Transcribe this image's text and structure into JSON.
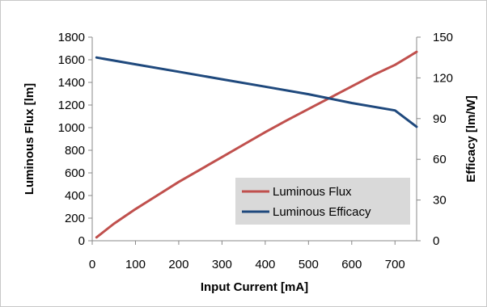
{
  "chart_data": {
    "type": "line",
    "xlabel": "Input Current [mA]",
    "ylabel_left": "Luminous Flux [lm]",
    "ylabel_right": "Efficacy [lm/W]",
    "xlim": [
      0,
      750
    ],
    "ylim_left": [
      0,
      1800
    ],
    "ylim_right": [
      0,
      150
    ],
    "x_ticks": [
      0,
      100,
      200,
      300,
      400,
      500,
      600,
      700
    ],
    "y_left_ticks": [
      0,
      200,
      400,
      600,
      800,
      1000,
      1200,
      1400,
      1600,
      1800
    ],
    "y_right_ticks": [
      0,
      30,
      60,
      90,
      120,
      150
    ],
    "grid": false,
    "legend_position": "bottom-right",
    "series": [
      {
        "name": "Luminous Flux",
        "axis": "left",
        "color": "#c0504d",
        "x": [
          10,
          50,
          100,
          150,
          200,
          250,
          300,
          350,
          400,
          450,
          500,
          550,
          600,
          650,
          700,
          750
        ],
        "y": [
          30,
          150,
          280,
          400,
          520,
          630,
          740,
          850,
          960,
          1065,
          1165,
          1265,
          1365,
          1465,
          1555,
          1670
        ]
      },
      {
        "name": "Luminous Efficacy",
        "axis": "right",
        "color": "#1f497d",
        "x": [
          10,
          100,
          200,
          300,
          400,
          500,
          600,
          700,
          750
        ],
        "y": [
          135,
          130,
          124.5,
          119,
          113.5,
          108,
          101.5,
          96,
          84
        ]
      }
    ]
  }
}
